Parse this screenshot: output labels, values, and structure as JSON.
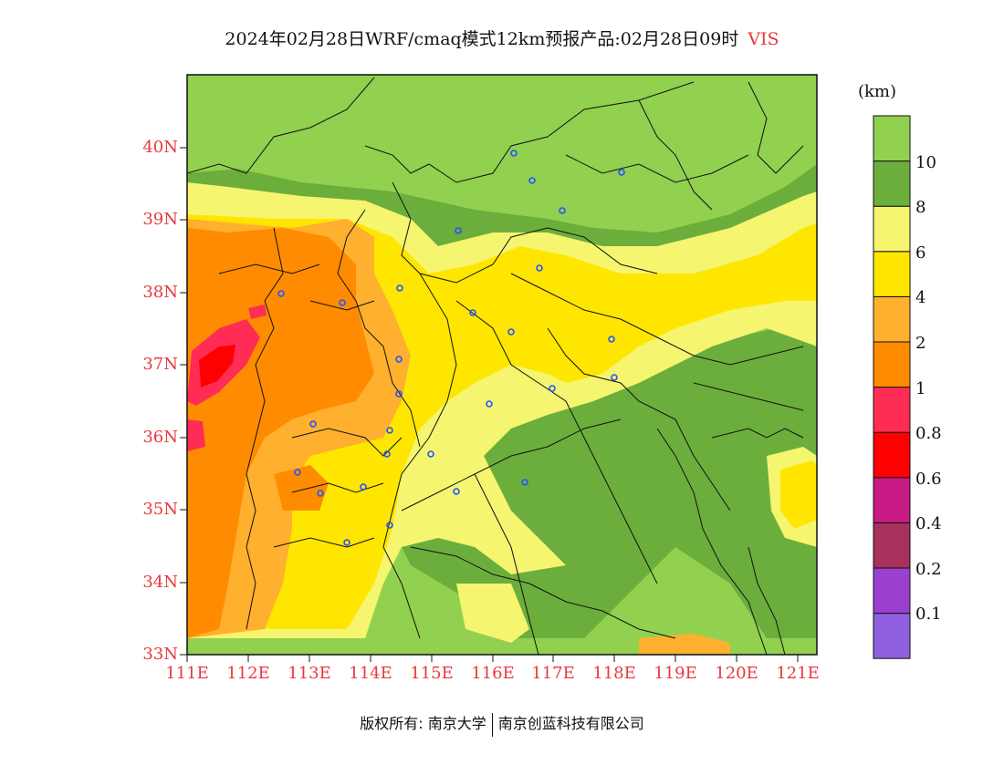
{
  "title": {
    "main": "2024年02月28日WRF/cmaq模式12km预报产品:02月28日09时",
    "variable": "VIS"
  },
  "unit": "(km)",
  "axes": {
    "lat_labels": [
      "40N",
      "39N",
      "38N",
      "37N",
      "36N",
      "35N",
      "34N",
      "33N"
    ],
    "lon_labels": [
      "111E",
      "112E",
      "113E",
      "114E",
      "115E",
      "116E",
      "117E",
      "118E",
      "119E",
      "120E",
      "121E"
    ]
  },
  "colorbar": {
    "colors": [
      "#8f5fe0",
      "#9b3fd1",
      "#a8305c",
      "#c81a86",
      "#ff0000",
      "#ff2d55",
      "#ff8c00",
      "#ffb02e",
      "#ffe600",
      "#f5f570",
      "#6cae3c",
      "#92d050"
    ],
    "labels": [
      "0.1",
      "0.2",
      "0.4",
      "0.6",
      "0.8",
      "1",
      "2",
      "4",
      "6",
      "8",
      "10"
    ]
  },
  "colors": {
    "title_var": "#e8383d",
    "axis_labels": "#e8383d",
    "station_marker": "#2255ff"
  },
  "footer": {
    "left": "版权所有: 南京大学",
    "right": "南京创蓝科技有限公司"
  }
}
